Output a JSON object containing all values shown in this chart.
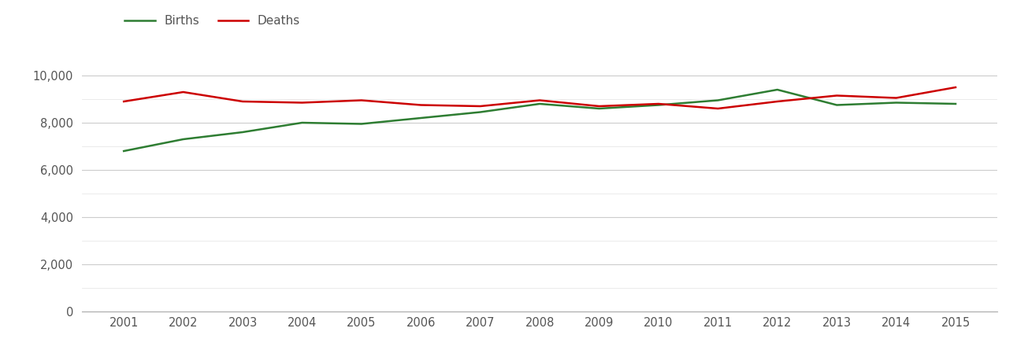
{
  "years": [
    2001,
    2002,
    2003,
    2004,
    2005,
    2006,
    2007,
    2008,
    2009,
    2010,
    2011,
    2012,
    2013,
    2014,
    2015
  ],
  "births": [
    6800,
    7300,
    7600,
    8000,
    7950,
    8200,
    8450,
    8800,
    8600,
    8750,
    8950,
    9400,
    8750,
    8850,
    8800
  ],
  "deaths": [
    8900,
    9300,
    8900,
    8850,
    8950,
    8750,
    8700,
    8950,
    8700,
    8800,
    8600,
    8900,
    9150,
    9050,
    9500
  ],
  "births_color": "#2e7d32",
  "deaths_color": "#cc0000",
  "background_color": "#ffffff",
  "major_grid_color": "#cccccc",
  "minor_grid_color": "#e8e8e8",
  "ylim": [
    0,
    10500
  ],
  "yticks_major": [
    0,
    2000,
    4000,
    6000,
    8000,
    10000
  ],
  "yticks_minor": [
    1000,
    3000,
    5000,
    7000,
    9000
  ],
  "legend_labels": [
    "Births",
    "Deaths"
  ],
  "line_width": 1.8,
  "tick_label_color": "#555555",
  "tick_label_size": 10.5
}
